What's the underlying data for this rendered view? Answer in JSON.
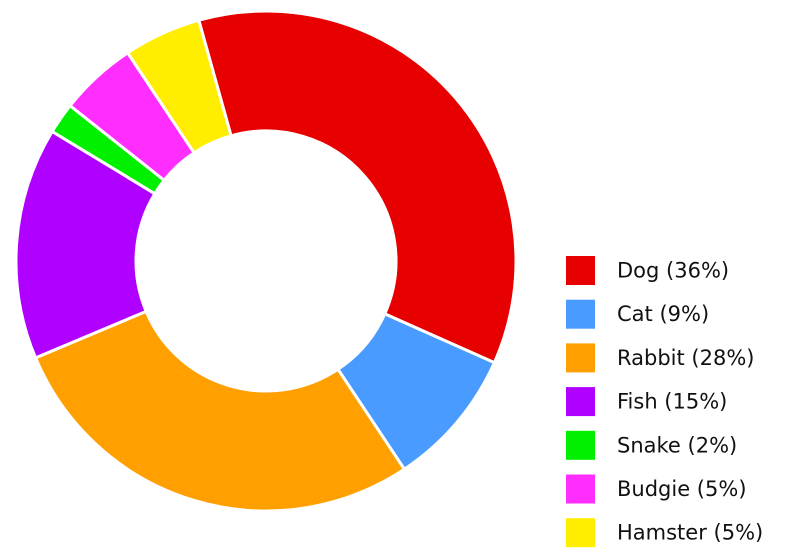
{
  "chart_data": {
    "type": "pie",
    "variant": "donut",
    "legend_position": "bottom-right",
    "slices": [
      {
        "label": "Dog (36%)",
        "value": 36,
        "color": "#E60000"
      },
      {
        "label": "Cat (9%)",
        "value": 9,
        "color": "#4A9BFF"
      },
      {
        "label": "Rabbit (28%)",
        "value": 28,
        "color": "#FFA000"
      },
      {
        "label": "Fish (15%)",
        "value": 15,
        "color": "#B000FF"
      },
      {
        "label": "Snake (2%)",
        "value": 2,
        "color": "#00F000"
      },
      {
        "label": "Budgie (5%)",
        "value": 5,
        "color": "#FF2EFF"
      },
      {
        "label": "Hamster (5%)",
        "value": 5,
        "color": "#FFEE00"
      }
    ]
  }
}
